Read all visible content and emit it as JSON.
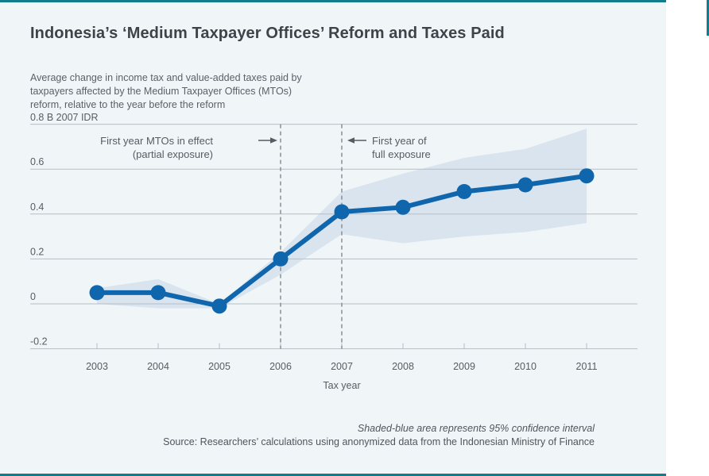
{
  "page": {
    "background": "#ffffff",
    "card_background": "#f0f5f8",
    "accent_teal": "#117c8c"
  },
  "header": {
    "title": "Indonesia’s ‘Medium Taxpayer Offices’ Reform and Taxes Paid"
  },
  "chart": {
    "subtitle_lines": {
      "0": "Average change in income tax and value-added taxes paid by",
      "1": "taxpayers affected by the Medium Taxpayer Offices (MTOs)",
      "2": "reform, relative to the year before the reform"
    },
    "y_top_label": "0.8 B 2007 IDR",
    "x_axis_label": "Tax year",
    "annotations": {
      "partial": {
        "line1": "First year MTOs in effect",
        "line2": "(partial exposure)"
      },
      "full": {
        "line1": "First year of",
        "line2": "full exposure"
      }
    }
  },
  "footer": {
    "note": "Shaded-blue area represents 95% confidence interval",
    "source": "Source: Researchers’ calculations using anonymized data from the Indonesian Ministry of Finance"
  },
  "chart_data": {
    "type": "line",
    "title": "Indonesia’s ‘Medium Taxpayer Offices’ Reform and Taxes Paid",
    "subtitle": "Average change in income tax and value-added taxes paid by taxpayers affected by the Medium Taxpayer Offices (MTOs) reform, relative to the year before the reform",
    "xlabel": "Tax year",
    "ylabel": "B 2007 IDR",
    "x": [
      2003,
      2004,
      2005,
      2006,
      2007,
      2008,
      2009,
      2010,
      2011
    ],
    "series": [
      {
        "name": "Average change in income tax and VAT paid (B 2007 IDR)",
        "values": [
          0.05,
          0.05,
          -0.01,
          0.2,
          0.41,
          0.43,
          0.5,
          0.53,
          0.57
        ]
      }
    ],
    "ci_label": "95% confidence interval",
    "ci_lower": [
      0.0,
      -0.02,
      -0.02,
      0.13,
      0.31,
      0.27,
      0.3,
      0.32,
      0.36
    ],
    "ci_upper": [
      0.07,
      0.11,
      0.0,
      0.23,
      0.5,
      0.58,
      0.65,
      0.69,
      0.78
    ],
    "yticks": [
      -0.2,
      0,
      0.2,
      0.4,
      0.6,
      0.8
    ],
    "ytick_labels": [
      "-0.2",
      "0",
      "0.2",
      "0.4",
      "0.6",
      ""
    ],
    "ylim": [
      -0.2,
      0.8
    ],
    "dashed_line_years": [
      2006,
      2007
    ],
    "grid": true,
    "legend_position": "none",
    "colors": {
      "line": "#1066ad",
      "band": "#d9e4ef",
      "grid": "#b6bec5",
      "dashed": "#878f96",
      "axis_text": "#565d63"
    }
  }
}
